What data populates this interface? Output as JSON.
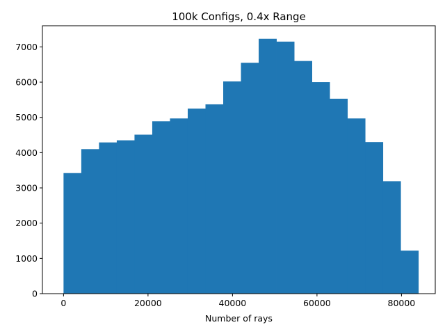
{
  "chart_data": {
    "type": "bar",
    "title": "100k Configs, 0.4x Range",
    "xlabel": "Number of rays",
    "ylabel": "",
    "bin_edges": [
      0,
      4200,
      8400,
      12600,
      16800,
      21000,
      25200,
      29400,
      33600,
      37800,
      42000,
      46200,
      50400,
      54600,
      58800,
      63000,
      67200,
      71400,
      75600,
      79800,
      84000
    ],
    "values": [
      3420,
      4100,
      4290,
      4350,
      4510,
      4890,
      4970,
      5250,
      5370,
      6020,
      6550,
      7230,
      7150,
      6600,
      6000,
      5530,
      4970,
      4300,
      3190,
      1220
    ],
    "xlim": [
      -5000,
      88000
    ],
    "ylim": [
      0,
      7600
    ],
    "xticks": [
      0,
      20000,
      40000,
      60000,
      80000
    ],
    "xtick_labels": [
      "0",
      "20000",
      "40000",
      "60000",
      "80000"
    ],
    "yticks": [
      0,
      1000,
      2000,
      3000,
      4000,
      5000,
      6000,
      7000
    ],
    "ytick_labels": [
      "0",
      "1000",
      "2000",
      "3000",
      "4000",
      "5000",
      "6000",
      "7000"
    ],
    "bar_color": "#1f77b4",
    "grid": false,
    "legend": "none"
  }
}
